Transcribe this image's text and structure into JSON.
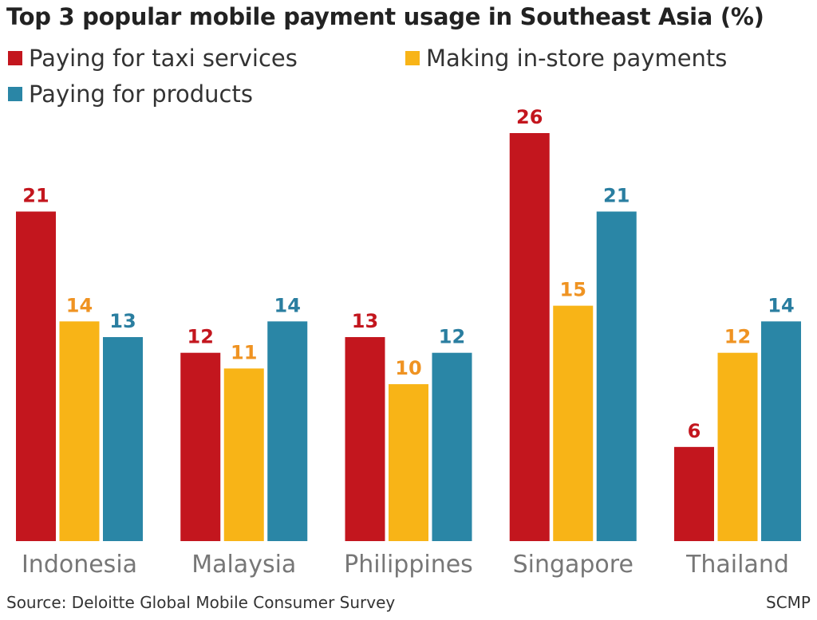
{
  "chart_data": {
    "type": "bar",
    "title": "Top 3 popular mobile payment usage in Southeast Asia (%)",
    "categories": [
      "Indonesia",
      "Malaysia",
      "Philippines",
      "Singapore",
      "Thailand"
    ],
    "series": [
      {
        "name": "Paying for taxi services",
        "values": [
          21,
          12,
          13,
          26,
          6
        ],
        "color": "#c3161e",
        "label_color": "#c3161e"
      },
      {
        "name": "Making in-store payments",
        "values": [
          14,
          11,
          10,
          15,
          12
        ],
        "color": "#f8b417",
        "label_color": "#ef9322"
      },
      {
        "name": "Paying for products",
        "values": [
          13,
          14,
          12,
          21,
          14
        ],
        "color": "#2a86a6",
        "label_color": "#2a7ea0"
      }
    ],
    "ylim": [
      0,
      26
    ],
    "grid": false,
    "legend_position": "top-left",
    "source": "Source: Deloitte Global Mobile Consumer Survey",
    "credit": "SCMP"
  }
}
